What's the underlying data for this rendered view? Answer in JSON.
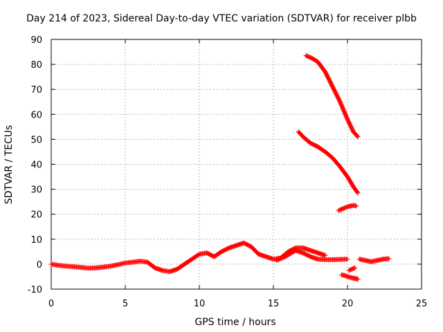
{
  "chart_data": {
    "type": "scatter",
    "title": "Day 214 of 2023, Sidereal Day-to-day VTEC variation (SDTVAR) for receiver plbb",
    "xlabel": "GPS time / hours",
    "ylabel": "SDTVAR / TECUs",
    "xlim": [
      0,
      25
    ],
    "ylim": [
      -10,
      90
    ],
    "xticks": [
      0,
      5,
      10,
      15,
      20,
      25
    ],
    "yticks": [
      -10,
      0,
      10,
      20,
      30,
      40,
      50,
      60,
      70,
      80,
      90
    ],
    "grid": true,
    "marker": "plus",
    "color": "#ff0000",
    "series": [
      {
        "name": "main-arc",
        "x": [
          0,
          0.5,
          1,
          1.5,
          2,
          2.5,
          3,
          3.5,
          4,
          4.5,
          5,
          5.5,
          6,
          6.5,
          7,
          7.5,
          8,
          8.5,
          9,
          9.5,
          10,
          10.5,
          11,
          11.5,
          12,
          12.5,
          13,
          13.5,
          14,
          14.5,
          15,
          15.5,
          16,
          16.5,
          17,
          17.5,
          18,
          18.5
        ],
        "y": [
          0,
          -0.5,
          -0.8,
          -1,
          -1.3,
          -1.6,
          -1.5,
          -1.2,
          -0.8,
          -0.2,
          0.5,
          0.8,
          1.2,
          0.8,
          -1.5,
          -2.5,
          -3,
          -2,
          0,
          2,
          4,
          4.5,
          3,
          5,
          6.5,
          7.5,
          8.5,
          7,
          4,
          3,
          2,
          2.5,
          5,
          6.5,
          6.5,
          5.5,
          4.5,
          3.5
        ]
      },
      {
        "name": "lower-branch",
        "x": [
          15.2,
          15.8,
          16.5,
          17,
          17.5,
          18,
          18.5,
          19,
          19.5,
          20
        ],
        "y": [
          1.5,
          3,
          5.5,
          4.5,
          3,
          2,
          1.8,
          1.8,
          1.9,
          2
        ]
      },
      {
        "name": "arc-high",
        "x": [
          17.2,
          17.6,
          18,
          18.5,
          19,
          19.5,
          20,
          20.4,
          20.7
        ],
        "y": [
          83.5,
          82.5,
          81,
          77,
          71,
          65,
          58,
          53,
          51
        ]
      },
      {
        "name": "arc-mid",
        "x": [
          16.7,
          17,
          17.5,
          18,
          18.5,
          19,
          19.5,
          20,
          20.4,
          20.7
        ],
        "y": [
          53,
          51,
          48.5,
          47,
          45,
          42.5,
          39,
          35,
          31,
          28.5
        ]
      },
      {
        "name": "arc-small",
        "x": [
          19.4,
          19.6,
          19.8,
          20,
          20.2,
          20.4,
          20.6
        ],
        "y": [
          21.5,
          22,
          22.5,
          23,
          23.3,
          23.5,
          23.3
        ]
      },
      {
        "name": "arc-negative",
        "x": [
          19.6,
          19.8,
          20,
          20.2,
          20.4,
          20.7
        ],
        "y": [
          -4.3,
          -4.5,
          -5,
          -5.3,
          -5.6,
          -6
        ]
      },
      {
        "name": "arc-short",
        "x": [
          20.1,
          20.3,
          20.5
        ],
        "y": [
          -2.5,
          -2,
          -1.5
        ]
      },
      {
        "name": "arc-tail",
        "x": [
          20.8,
          21.2,
          21.6,
          22,
          22.4,
          22.8
        ],
        "y": [
          2,
          1.5,
          1,
          1.5,
          2,
          2.2
        ]
      }
    ]
  }
}
